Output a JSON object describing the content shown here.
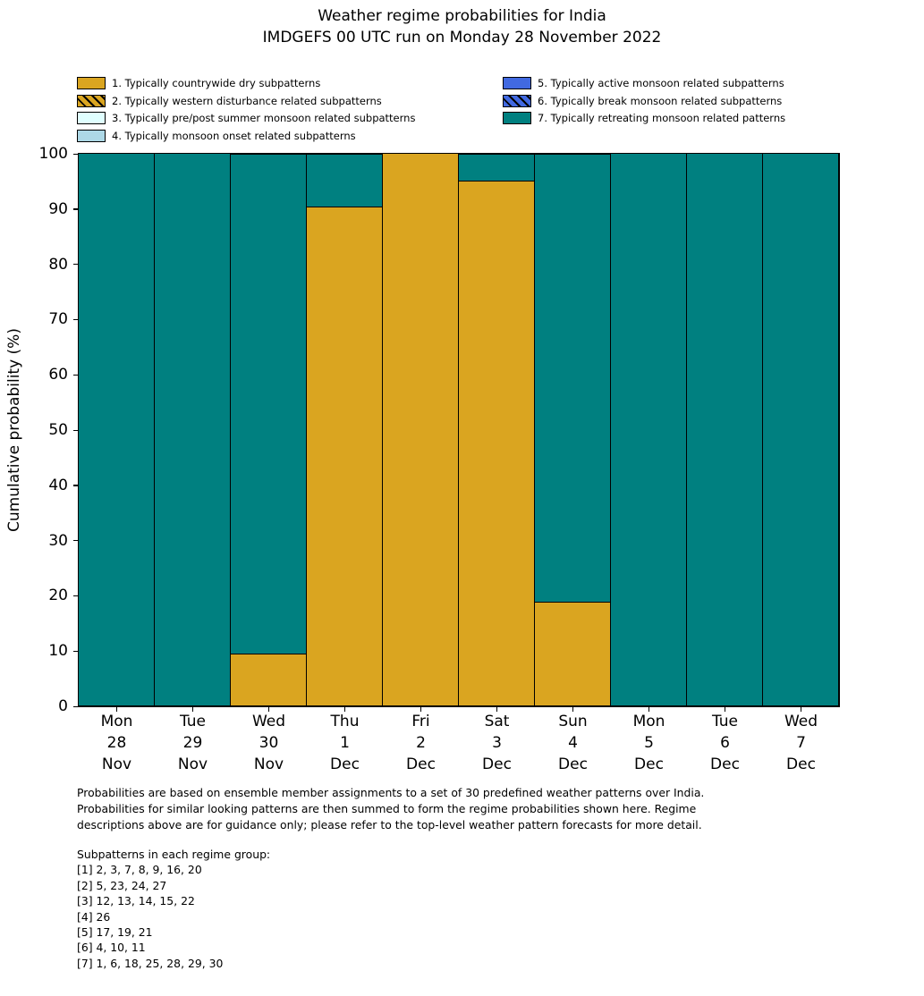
{
  "title": {
    "line1": "Weather regime probabilities for India",
    "line2": "IMDGEFS 00 UTC run on Monday 28 November 2022"
  },
  "chart_data": {
    "type": "bar",
    "stacked": true,
    "title": "Weather regime probabilities for India",
    "subtitle": "IMDGEFS 00 UTC run on Monday 28 November 2022",
    "xlabel": "",
    "ylabel": "Cumulative probability (%)",
    "ylim": [
      0,
      100
    ],
    "yticks": [
      0,
      10,
      20,
      30,
      40,
      50,
      60,
      70,
      80,
      90,
      100
    ],
    "grid": false,
    "legend_position": "top",
    "bar_edge_color": "#000000",
    "categories": [
      {
        "day": "Mon",
        "date": "28",
        "month": "Nov"
      },
      {
        "day": "Tue",
        "date": "29",
        "month": "Nov"
      },
      {
        "day": "Wed",
        "date": "30",
        "month": "Nov"
      },
      {
        "day": "Thu",
        "date": "1",
        "month": "Dec"
      },
      {
        "day": "Fri",
        "date": "2",
        "month": "Dec"
      },
      {
        "day": "Sat",
        "date": "3",
        "month": "Dec"
      },
      {
        "day": "Sun",
        "date": "4",
        "month": "Dec"
      },
      {
        "day": "Mon",
        "date": "5",
        "month": "Dec"
      },
      {
        "day": "Tue",
        "date": "6",
        "month": "Dec"
      },
      {
        "day": "Wed",
        "date": "7",
        "month": "Dec"
      }
    ],
    "series": [
      {
        "name": "1. Typically countrywide dry subpatterns",
        "color": "#DAA520",
        "hatch": false,
        "values": [
          0,
          0,
          9.5,
          90.5,
          100,
          95.2,
          19,
          0,
          0,
          0
        ]
      },
      {
        "name": "2. Typically western disturbance related subpatterns",
        "color": "#DAA520",
        "hatch": true,
        "values": [
          0,
          0,
          0,
          0,
          0,
          0,
          0,
          0,
          0,
          0
        ]
      },
      {
        "name": "3. Typically pre/post summer monsoon related subpatterns",
        "color": "#E0FFFF",
        "hatch": false,
        "values": [
          0,
          0,
          0,
          0,
          0,
          0,
          0,
          0,
          0,
          0
        ]
      },
      {
        "name": "4. Typically monsoon onset related subpatterns",
        "color": "#ADD8E6",
        "hatch": false,
        "values": [
          0,
          0,
          0,
          0,
          0,
          0,
          0,
          0,
          0,
          0
        ]
      },
      {
        "name": "5. Typically active monsoon related subpatterns",
        "color": "#4169E1",
        "hatch": false,
        "values": [
          0,
          0,
          0,
          0,
          0,
          0,
          0,
          0,
          0,
          0
        ]
      },
      {
        "name": "6. Typically break monsoon related subpatterns",
        "color": "#4169E1",
        "hatch": true,
        "values": [
          0,
          0,
          0,
          0,
          0,
          0,
          0,
          0,
          0,
          0
        ]
      },
      {
        "name": "7. Typically retreating monsoon related patterns",
        "color": "#008080",
        "hatch": false,
        "values": [
          100,
          100,
          90.5,
          9.5,
          0,
          4.8,
          81,
          100,
          100,
          100
        ]
      }
    ]
  },
  "footer": {
    "lines": [
      "Probabilities are based on ensemble member assignments to a set of 30 predefined weather patterns over India.",
      "Probabilities for similar looking patterns are then summed to form the regime probabilities shown here. Regime",
      "descriptions above are for guidance only; please refer to the top-level weather pattern forecasts for more detail."
    ]
  },
  "subpatterns": {
    "header": "Subpatterns in each regime group:",
    "lines": [
      "[1] 2, 3, 7, 8, 9, 16, 20",
      "[2] 5, 23, 24, 27",
      "[3] 12, 13, 14, 15, 22",
      "[4] 26",
      "[5] 17, 19, 21",
      "[6] 4, 10, 11",
      "[7] 1, 6, 18, 25, 28, 29, 30"
    ]
  }
}
